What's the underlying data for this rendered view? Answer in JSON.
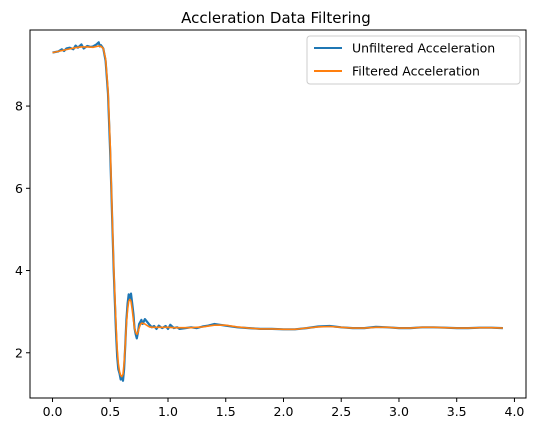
{
  "chart_data": {
    "type": "line",
    "title": "Accleration Data Filtering",
    "xlabel": "",
    "ylabel": "",
    "xlim": [
      -0.195,
      4.1
    ],
    "ylim": [
      0.9,
      9.85
    ],
    "xticks": [
      0.0,
      0.5,
      1.0,
      1.5,
      2.0,
      2.5,
      3.0,
      3.5,
      4.0
    ],
    "xtick_labels": [
      "0.0",
      "0.5",
      "1.0",
      "1.5",
      "2.0",
      "2.5",
      "3.0",
      "3.5",
      "4.0"
    ],
    "yticks": [
      2,
      4,
      6,
      8
    ],
    "ytick_labels": [
      "2",
      "4",
      "6",
      "8"
    ],
    "grid": false,
    "legend_position": "upper right",
    "series": [
      {
        "name": "Unfiltered Acceleration",
        "color": "#1f77b4",
        "x": [
          0.0,
          0.05,
          0.08,
          0.1,
          0.12,
          0.15,
          0.18,
          0.2,
          0.22,
          0.25,
          0.27,
          0.3,
          0.33,
          0.35,
          0.38,
          0.4,
          0.41,
          0.42,
          0.44,
          0.46,
          0.48,
          0.5,
          0.51,
          0.52,
          0.53,
          0.55,
          0.56,
          0.57,
          0.58,
          0.59,
          0.6,
          0.61,
          0.62,
          0.63,
          0.64,
          0.65,
          0.66,
          0.67,
          0.68,
          0.69,
          0.7,
          0.71,
          0.72,
          0.73,
          0.74,
          0.75,
          0.76,
          0.77,
          0.78,
          0.8,
          0.82,
          0.84,
          0.86,
          0.88,
          0.9,
          0.92,
          0.95,
          0.98,
          1.0,
          1.02,
          1.05,
          1.08,
          1.1,
          1.15,
          1.2,
          1.25,
          1.3,
          1.35,
          1.4,
          1.45,
          1.5,
          1.6,
          1.7,
          1.8,
          1.9,
          2.0,
          2.1,
          2.2,
          2.3,
          2.4,
          2.5,
          2.6,
          2.7,
          2.8,
          2.9,
          3.0,
          3.1,
          3.2,
          3.3,
          3.4,
          3.5,
          3.6,
          3.7,
          3.8,
          3.9
        ],
        "y": [
          9.3,
          9.33,
          9.38,
          9.34,
          9.4,
          9.42,
          9.38,
          9.47,
          9.42,
          9.5,
          9.4,
          9.46,
          9.44,
          9.45,
          9.5,
          9.55,
          9.45,
          9.48,
          9.4,
          9.1,
          8.3,
          6.8,
          5.9,
          4.9,
          4.0,
          2.5,
          1.9,
          1.6,
          1.5,
          1.35,
          1.4,
          1.32,
          1.6,
          2.2,
          2.8,
          3.2,
          3.42,
          3.3,
          3.44,
          3.2,
          2.95,
          2.6,
          2.45,
          2.35,
          2.5,
          2.7,
          2.75,
          2.8,
          2.7,
          2.82,
          2.75,
          2.68,
          2.62,
          2.65,
          2.58,
          2.66,
          2.6,
          2.65,
          2.58,
          2.68,
          2.6,
          2.62,
          2.58,
          2.6,
          2.62,
          2.6,
          2.64,
          2.66,
          2.7,
          2.68,
          2.66,
          2.62,
          2.6,
          2.58,
          2.58,
          2.57,
          2.57,
          2.6,
          2.64,
          2.65,
          2.62,
          2.6,
          2.6,
          2.63,
          2.62,
          2.6,
          2.6,
          2.62,
          2.62,
          2.61,
          2.6,
          2.6,
          2.61,
          2.61,
          2.6
        ]
      },
      {
        "name": "Filtered Acceleration",
        "color": "#ff7f0e",
        "x": [
          0.0,
          0.05,
          0.1,
          0.15,
          0.2,
          0.25,
          0.3,
          0.35,
          0.4,
          0.42,
          0.44,
          0.46,
          0.48,
          0.5,
          0.51,
          0.52,
          0.53,
          0.55,
          0.56,
          0.57,
          0.58,
          0.59,
          0.6,
          0.61,
          0.62,
          0.63,
          0.64,
          0.65,
          0.66,
          0.67,
          0.68,
          0.69,
          0.7,
          0.71,
          0.72,
          0.73,
          0.74,
          0.75,
          0.76,
          0.77,
          0.78,
          0.8,
          0.82,
          0.84,
          0.86,
          0.9,
          0.95,
          1.0,
          1.05,
          1.1,
          1.2,
          1.3,
          1.4,
          1.5,
          1.6,
          1.7,
          1.8,
          1.9,
          2.0,
          2.1,
          2.2,
          2.3,
          2.4,
          2.5,
          2.6,
          2.7,
          2.8,
          2.9,
          3.0,
          3.1,
          3.2,
          3.3,
          3.4,
          3.5,
          3.6,
          3.7,
          3.8,
          3.9
        ],
        "y": [
          9.3,
          9.33,
          9.36,
          9.39,
          9.42,
          9.44,
          9.44,
          9.43,
          9.46,
          9.45,
          9.4,
          9.15,
          8.4,
          7.0,
          6.0,
          5.0,
          4.1,
          2.7,
          2.1,
          1.75,
          1.55,
          1.45,
          1.42,
          1.48,
          1.75,
          2.2,
          2.7,
          3.05,
          3.25,
          3.3,
          3.25,
          3.05,
          2.8,
          2.6,
          2.5,
          2.45,
          2.5,
          2.6,
          2.68,
          2.72,
          2.72,
          2.7,
          2.66,
          2.63,
          2.62,
          2.62,
          2.62,
          2.62,
          2.61,
          2.61,
          2.61,
          2.63,
          2.67,
          2.67,
          2.63,
          2.6,
          2.58,
          2.58,
          2.57,
          2.57,
          2.6,
          2.63,
          2.64,
          2.62,
          2.6,
          2.6,
          2.62,
          2.62,
          2.6,
          2.6,
          2.62,
          2.62,
          2.61,
          2.6,
          2.6,
          2.61,
          2.61,
          2.6
        ]
      }
    ]
  }
}
